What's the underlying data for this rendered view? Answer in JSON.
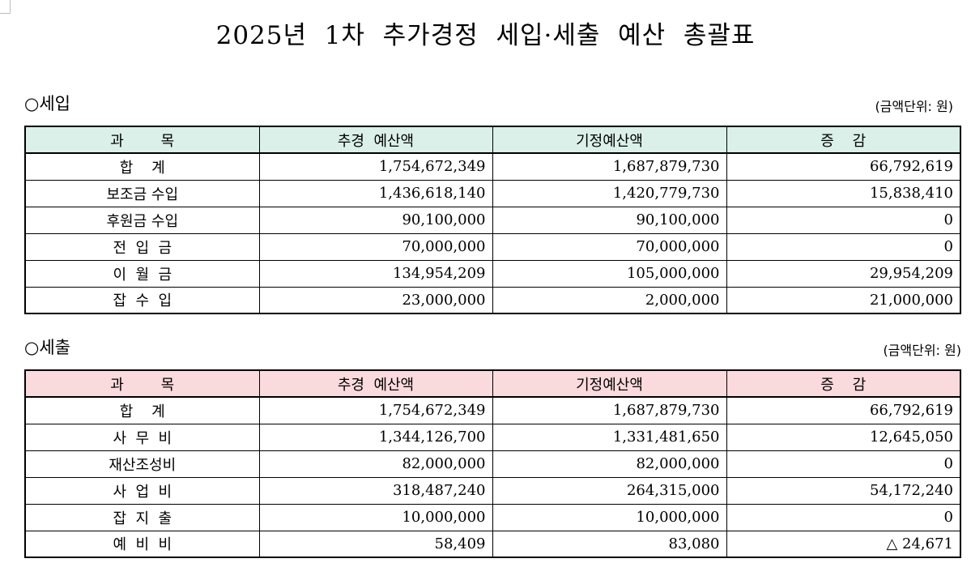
{
  "title": "2025년  1차  추가경정  세입·세출  예산  총괄표",
  "revenue": {
    "heading": "○세입",
    "unit": "(금액단위:  원)",
    "headers": [
      "과        목",
      "추경  예산액",
      "기정예산액",
      "증    감"
    ],
    "rows": [
      {
        "item": "합    계",
        "supplementary": "1,754,672,349",
        "existing": "1,687,879,730",
        "change": "66,792,619"
      },
      {
        "item": "보조금 수입",
        "supplementary": "1,436,618,140",
        "existing": "1,420,779,730",
        "change": "15,838,410"
      },
      {
        "item": "후원금 수입",
        "supplementary": "90,100,000",
        "existing": "90,100,000",
        "change": "0"
      },
      {
        "item": "전  입  금",
        "supplementary": "70,000,000",
        "existing": "70,000,000",
        "change": "0"
      },
      {
        "item": "이  월  금",
        "supplementary": "134,954,209",
        "existing": "105,000,000",
        "change": "29,954,209"
      },
      {
        "item": "잡  수  입",
        "supplementary": "23,000,000",
        "existing": "2,000,000",
        "change": "21,000,000"
      }
    ]
  },
  "expenditure": {
    "heading": "○세출",
    "unit": "(금액단위:  원)",
    "headers": [
      "과        목",
      "추경  예산액",
      "기정예산액",
      "증    감"
    ],
    "rows": [
      {
        "item": "합    계",
        "supplementary": "1,754,672,349",
        "existing": "1,687,879,730",
        "change": "66,792,619"
      },
      {
        "item": "사  무  비",
        "supplementary": "1,344,126,700",
        "existing": "1,331,481,650",
        "change": "12,645,050"
      },
      {
        "item": "재산조성비",
        "supplementary": "82,000,000",
        "existing": "82,000,000",
        "change": "0"
      },
      {
        "item": "사  업  비",
        "supplementary": "318,487,240",
        "existing": "264,315,000",
        "change": "54,172,240"
      },
      {
        "item": "잡  지  출",
        "supplementary": "10,000,000",
        "existing": "10,000,000",
        "change": "0"
      },
      {
        "item": "예  비  비",
        "supplementary": "58,409",
        "existing": "83,080",
        "change": "△  24,671"
      }
    ]
  }
}
